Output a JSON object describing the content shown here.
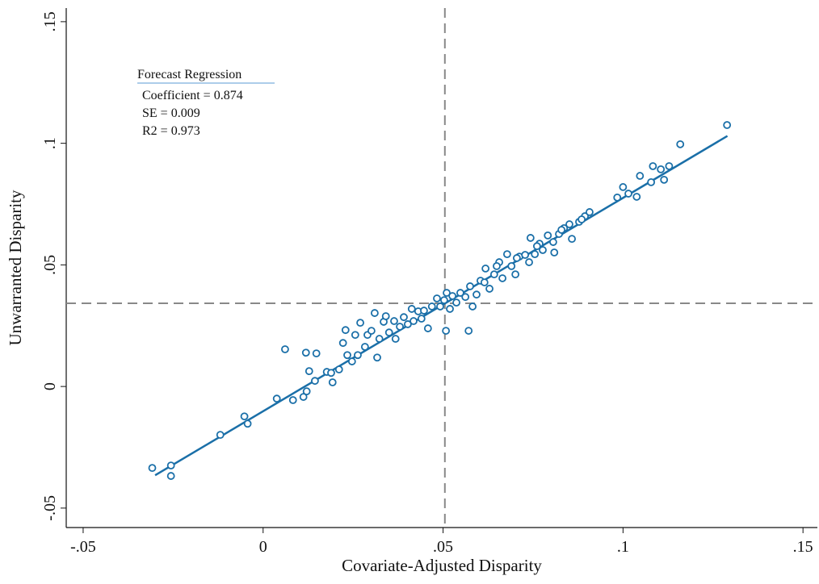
{
  "chart_data": {
    "type": "scatter",
    "xlabel": "Covariate-Adjusted Disparity",
    "ylabel": "Unwarranted Disparity",
    "annotation": {
      "title": "Forecast Regression",
      "lines": [
        "Coefficient = 0.874",
        "SE = 0.009",
        "R2 = 0.973"
      ]
    },
    "xlim": [
      -0.0547,
      0.154
    ],
    "ylim": [
      -0.058,
      0.1556
    ],
    "xticks": [
      {
        "value": -0.05,
        "label": "-.05"
      },
      0,
      {
        "value": 0.05,
        "label": ".05"
      },
      {
        "value": 0.1,
        "label": ".1"
      },
      {
        "value": 0.15,
        "label": ".15"
      }
    ],
    "yticks": [
      {
        "value": -0.05,
        "label": "-.05"
      },
      0,
      {
        "value": 0.05,
        "label": ".05"
      },
      {
        "value": 0.1,
        "label": ".1"
      },
      {
        "value": 0.15,
        "label": ".15"
      }
    ],
    "reference_lines": {
      "x": 0.0505,
      "y": 0.0342
    },
    "fit_line": {
      "x": [
        -0.03,
        0.129
      ],
      "y": [
        -0.0365,
        0.103
      ]
    },
    "series": [
      {
        "color": "#1a6fa8",
        "x": [
          -0.0308,
          -0.0256,
          -0.0256,
          -0.0119,
          -0.0052,
          -0.0043,
          0.0038,
          0.0061,
          0.0083,
          0.0112,
          0.0121,
          0.0119,
          0.0128,
          0.0148,
          0.0144,
          0.0177,
          0.0193,
          0.0189,
          0.0211,
          0.0222,
          0.0229,
          0.0247,
          0.0256,
          0.027,
          0.0263,
          0.0283,
          0.031,
          0.0317,
          0.0323,
          0.0335,
          0.0341,
          0.035,
          0.0364,
          0.0368,
          0.038,
          0.0391,
          0.0402,
          0.0413,
          0.0418,
          0.0431,
          0.044,
          0.0458,
          0.0469,
          0.0483,
          0.0492,
          0.0503,
          0.051,
          0.0508,
          0.0519,
          0.0526,
          0.0537,
          0.0548,
          0.0562,
          0.0571,
          0.0575,
          0.0582,
          0.0593,
          0.0604,
          0.0618,
          0.0629,
          0.0642,
          0.0656,
          0.0665,
          0.0678,
          0.069,
          0.0701,
          0.0712,
          0.0728,
          0.0739,
          0.0743,
          0.0755,
          0.0768,
          0.0777,
          0.0791,
          0.0806,
          0.0809,
          0.0822,
          0.0836,
          0.0851,
          0.0858,
          0.0878,
          0.0894,
          0.0907,
          0.0984,
          0.1,
          0.1015,
          0.1038,
          0.1047,
          0.1078,
          0.1083,
          0.1105,
          0.1114,
          0.1128,
          0.1159,
          0.1289,
          0.0234,
          0.029,
          0.0301,
          0.0447,
          0.0615,
          0.0649,
          0.0705,
          0.0761,
          0.0829,
          0.0885
        ],
        "values": [
          -0.0335,
          -0.0325,
          -0.0368,
          -0.0199,
          -0.0123,
          -0.0153,
          -0.005,
          0.0153,
          -0.0056,
          -0.0043,
          -0.002,
          0.0139,
          0.0063,
          0.0136,
          0.0023,
          0.006,
          0.0017,
          0.0056,
          0.007,
          0.0179,
          0.0232,
          0.0103,
          0.0212,
          0.0262,
          0.0129,
          0.0163,
          0.0302,
          0.0119,
          0.0196,
          0.0266,
          0.0289,
          0.0222,
          0.0269,
          0.0196,
          0.0246,
          0.0285,
          0.0256,
          0.0319,
          0.0269,
          0.0309,
          0.0279,
          0.0239,
          0.0329,
          0.0362,
          0.0329,
          0.0355,
          0.0385,
          0.0229,
          0.0319,
          0.0372,
          0.0345,
          0.0385,
          0.0368,
          0.0229,
          0.0412,
          0.0329,
          0.0378,
          0.0435,
          0.0485,
          0.0402,
          0.0461,
          0.0511,
          0.0445,
          0.0544,
          0.0495,
          0.0461,
          0.0534,
          0.0541,
          0.0511,
          0.0611,
          0.0544,
          0.0587,
          0.0561,
          0.0621,
          0.0594,
          0.0551,
          0.0627,
          0.0651,
          0.0667,
          0.0607,
          0.0677,
          0.07,
          0.0717,
          0.0777,
          0.082,
          0.0793,
          0.078,
          0.0866,
          0.084,
          0.0906,
          0.0893,
          0.085,
          0.0906,
          0.0996,
          0.1075,
          0.0129,
          0.0212,
          0.0229,
          0.0312,
          0.0428,
          0.0495,
          0.0528,
          0.0577,
          0.0644,
          0.0687
        ]
      }
    ]
  }
}
